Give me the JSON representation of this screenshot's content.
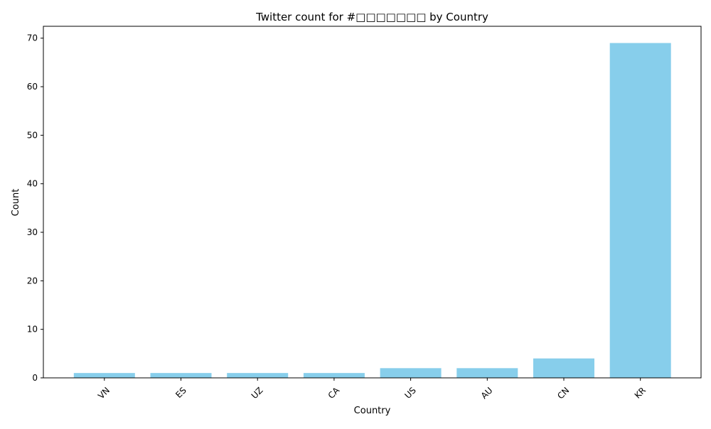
{
  "chart_data": {
    "type": "bar",
    "title": "Twitter count for #□□□□□□□ by Country",
    "xlabel": "Country",
    "ylabel": "Count",
    "categories": [
      "VN",
      "ES",
      "UZ",
      "CA",
      "US",
      "AU",
      "CN",
      "KR"
    ],
    "values": [
      1,
      1,
      1,
      1,
      2,
      2,
      4,
      69
    ],
    "ylim": [
      0,
      72.45
    ],
    "yticks": [
      0,
      10,
      20,
      30,
      40,
      50,
      60,
      70
    ],
    "ytick_labels": [
      "0",
      "10",
      "20",
      "30",
      "40",
      "50",
      "60",
      "70"
    ],
    "bar_color": "#87CEEB",
    "grid": false,
    "legend": "none"
  }
}
